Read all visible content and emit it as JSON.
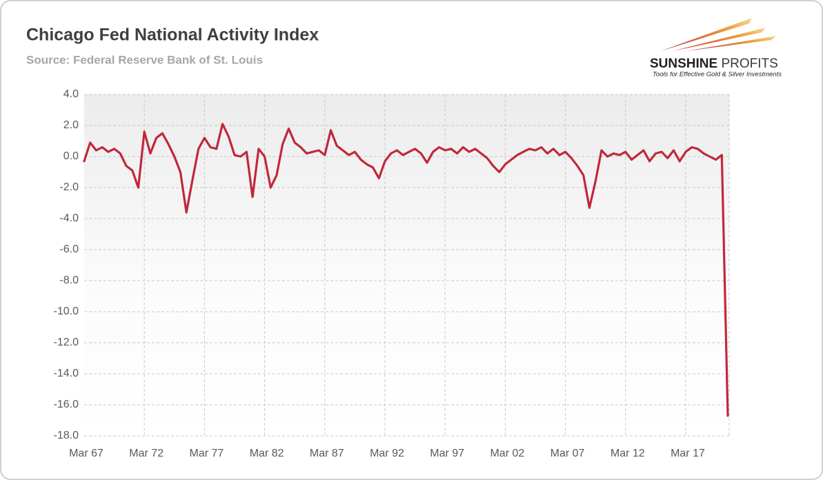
{
  "chart_data": {
    "type": "line",
    "title": "Chicago Fed National Activity Index",
    "subtitle": "Source: Federal Reserve Bank of St. Louis",
    "logo_name_bold": "SUNSHINE",
    "logo_name_light": "PROFITS",
    "logo_tagline": "Tools for Effective Gold & Silver Investments",
    "color": "#c0283a",
    "grid": true,
    "ylim": [
      -18,
      4
    ],
    "yticks": [
      {
        "value": 4,
        "label": "4.0"
      },
      {
        "value": 2,
        "label": "2.0"
      },
      {
        "value": 0,
        "label": "0.0"
      },
      {
        "value": -2,
        "label": "-2.0"
      },
      {
        "value": -4,
        "label": "-4.0"
      },
      {
        "value": -6,
        "label": "-6.0"
      },
      {
        "value": -8,
        "label": "-8.0"
      },
      {
        "value": -10,
        "label": "-10.0"
      },
      {
        "value": -12,
        "label": "-12.0"
      },
      {
        "value": -14,
        "label": "-14.0"
      },
      {
        "value": -16,
        "label": "-16.0"
      },
      {
        "value": -18,
        "label": "-18.0"
      }
    ],
    "categories": [
      "Mar 67",
      null,
      null,
      null,
      null,
      null,
      null,
      null,
      null,
      null,
      "Mar 72",
      null,
      null,
      null,
      null,
      null,
      null,
      null,
      null,
      null,
      "Mar 77",
      null,
      null,
      null,
      null,
      null,
      null,
      null,
      null,
      null,
      "Mar 82",
      null,
      null,
      null,
      null,
      null,
      null,
      null,
      null,
      null,
      "Mar 87",
      null,
      null,
      null,
      null,
      null,
      null,
      null,
      null,
      null,
      "Mar 92",
      null,
      null,
      null,
      null,
      null,
      null,
      null,
      null,
      null,
      "Mar 97",
      null,
      null,
      null,
      null,
      null,
      null,
      null,
      null,
      null,
      "Mar 02",
      null,
      null,
      null,
      null,
      null,
      null,
      null,
      null,
      null,
      "Mar 07",
      null,
      null,
      null,
      null,
      null,
      null,
      null,
      null,
      null,
      "Mar 12",
      null,
      null,
      null,
      null,
      null,
      null,
      null,
      null,
      null,
      "Mar 17",
      null,
      null,
      null,
      null,
      null,
      null,
      null
    ],
    "values": [
      -0.3,
      0.9,
      0.4,
      0.6,
      0.3,
      0.5,
      0.2,
      -0.6,
      -0.9,
      -2.0,
      1.6,
      0.2,
      1.2,
      1.5,
      0.8,
      0.0,
      -1.0,
      -3.6,
      -1.5,
      0.5,
      1.2,
      0.6,
      0.5,
      2.1,
      1.3,
      0.1,
      0.0,
      0.3,
      -2.6,
      0.5,
      0.0,
      -2.0,
      -1.2,
      0.8,
      1.8,
      0.9,
      0.6,
      0.2,
      0.3,
      0.4,
      0.1,
      1.7,
      0.7,
      0.4,
      0.1,
      0.3,
      -0.2,
      -0.5,
      -0.7,
      -1.4,
      -0.3,
      0.2,
      0.4,
      0.1,
      0.3,
      0.5,
      0.2,
      -0.4,
      0.3,
      0.6,
      0.4,
      0.5,
      0.2,
      0.6,
      0.3,
      0.5,
      0.2,
      -0.1,
      -0.6,
      -1.0,
      -0.5,
      -0.2,
      0.1,
      0.3,
      0.5,
      0.4,
      0.6,
      0.2,
      0.5,
      0.1,
      0.3,
      -0.1,
      -0.6,
      -1.2,
      -3.3,
      -1.6,
      0.4,
      0.0,
      0.2,
      0.1,
      0.3,
      -0.2,
      0.1,
      0.4,
      -0.3,
      0.2,
      0.3,
      -0.1,
      0.4,
      -0.3,
      0.3,
      0.6,
      0.5,
      0.2,
      0.0,
      -0.2,
      0.1,
      -16.7
    ]
  }
}
